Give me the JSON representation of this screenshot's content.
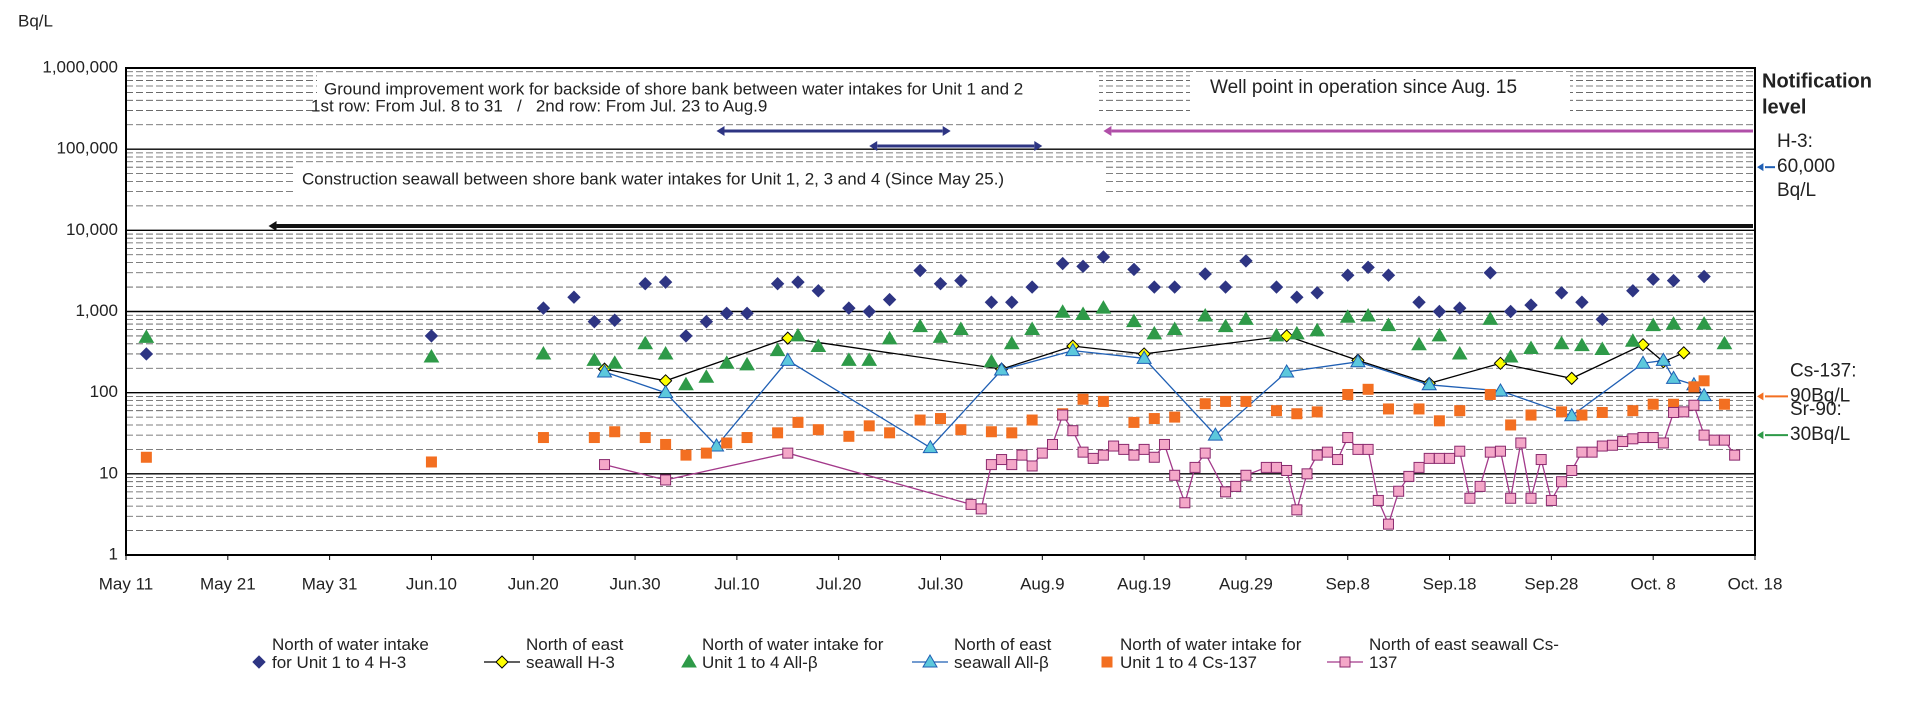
{
  "chart_data": {
    "type": "scatter",
    "y_label": "Bq/L",
    "log_y": true,
    "grid": true,
    "xlim": [
      "05-11",
      "10-18"
    ],
    "ylim": [
      1,
      1000000
    ],
    "yticks": [
      1,
      10,
      100,
      {
        "value": 1000,
        "label": "1,000"
      },
      {
        "value": 10000,
        "label": "10,000"
      },
      {
        "value": 100000,
        "label": "100,000"
      },
      {
        "value": 1000000,
        "label": "1,000,000"
      }
    ],
    "xticks": [
      {
        "value": "05-11",
        "label": "May 11"
      },
      {
        "value": "05-21",
        "label": "May 21"
      },
      {
        "value": "05-31",
        "label": "May 31"
      },
      {
        "value": "06-10",
        "label": "Jun.10"
      },
      {
        "value": "06-20",
        "label": "Jun.20"
      },
      {
        "value": "06-30",
        "label": "Jun.30"
      },
      {
        "value": "07-10",
        "label": "Jul.10"
      },
      {
        "value": "07-20",
        "label": "Jul.20"
      },
      {
        "value": "07-30",
        "label": "Jul.30"
      },
      {
        "value": "08-09",
        "label": "Aug.9"
      },
      {
        "value": "08-19",
        "label": "Aug.19"
      },
      {
        "value": "08-29",
        "label": "Aug.29"
      },
      {
        "value": "09-08",
        "label": "Sep.8"
      },
      {
        "value": "09-18",
        "label": "Sep.18"
      },
      {
        "value": "09-28",
        "label": "Sep.28"
      },
      {
        "value": "10-08",
        "label": "Oct. 8"
      },
      {
        "value": "10-18",
        "label": "Oct. 18"
      }
    ],
    "annotations": {
      "ground_improvement": "Ground improvement work for backside of shore bank between water intakes for Unit 1 and 2",
      "rows": "1st row: From Jul. 8 to 31   /   2nd row: From Jul. 23 to Aug.9",
      "well_point": "Well point in operation since Aug. 15",
      "seawall": "Construction seawall between shore bank water intakes for Unit 1, 2, 3 and 4 (Since May 25.)",
      "notification": "Notification",
      "notification_2": "level"
    },
    "periods": [
      {
        "start": "07-08",
        "end": "07-31",
        "color": "#2e3583"
      },
      {
        "start": "07-23",
        "end": "08-09",
        "color": "#2e3583"
      },
      {
        "start": "08-15",
        "end": null,
        "color": "#b04fa8"
      },
      {
        "start": "05-25",
        "end": null,
        "color": "#111111"
      }
    ],
    "notification_levels": [
      {
        "name": "H-3:",
        "value": 60000,
        "value_label": "60,000",
        "unit": "Bq/L",
        "color": "#1f5fb4"
      },
      {
        "name": "Cs-137:",
        "value": 90,
        "value_label": "90Bq/L",
        "color": "#f36f21"
      },
      {
        "name": "Sr-90:",
        "value": 30,
        "value_label": "30Bq/L",
        "color": "#2e9a48"
      }
    ],
    "series": [
      {
        "name": "North of water intake for Unit 1 to 4 H-3",
        "marker": "diamond",
        "color": "#2e3583",
        "edge": "#2e3583",
        "x": [
          "05-13",
          "06-10",
          "06-21",
          "06-24",
          "06-26",
          "06-28",
          "07-01",
          "07-03",
          "07-05",
          "07-07",
          "07-09",
          "07-11",
          "07-14",
          "07-16",
          "07-18",
          "07-21",
          "07-23",
          "07-25",
          "07-28",
          "07-30",
          "08-01",
          "08-04",
          "08-06",
          "08-08",
          "08-11",
          "08-13",
          "08-15",
          "08-18",
          "08-20",
          "08-22",
          "08-25",
          "08-27",
          "08-29",
          "09-01",
          "09-03",
          "09-05",
          "09-08",
          "09-10",
          "09-12",
          "09-15",
          "09-17",
          "09-19",
          "09-22",
          "09-24",
          "09-26",
          "09-29",
          "10-01",
          "10-03",
          "10-06",
          "10-08",
          "10-10",
          "10-13"
        ],
        "values": [
          300,
          500,
          1100,
          1500,
          750,
          780,
          2200,
          2300,
          500,
          750,
          950,
          950,
          2200,
          2300,
          1800,
          1100,
          1000,
          1400,
          3200,
          2200,
          2400,
          1300,
          1300,
          2000,
          3900,
          3600,
          4700,
          3300,
          2000,
          2000,
          2900,
          2000,
          4200,
          2000,
          1500,
          1700,
          2800,
          3500,
          2800,
          1300,
          1000,
          1100,
          3000,
          1000,
          1200,
          1700,
          1300,
          800,
          1800,
          2500,
          2400,
          2700
        ]
      },
      {
        "name": "North of east seawall H-3",
        "marker": "diamond",
        "color": "#ffff00",
        "edge": "#000000",
        "line": "#000000",
        "x": [
          "06-27",
          "07-03",
          "07-15",
          "08-05",
          "08-12",
          "08-19",
          "09-02",
          "09-09",
          "09-16",
          "09-23",
          "09-30",
          "10-07",
          "10-09",
          "10-11"
        ],
        "values": [
          195,
          140,
          470,
          195,
          375,
          300,
          500,
          250,
          130,
          230,
          150,
          390,
          240,
          310
        ]
      },
      {
        "name": "North of water intake for Unit 1 to 4 All-β",
        "marker": "triangle",
        "color": "#2e9a48",
        "edge": "#2e9a48",
        "x": [
          "05-13",
          "06-10",
          "06-21",
          "06-26",
          "06-28",
          "07-01",
          "07-03",
          "07-05",
          "07-07",
          "07-09",
          "07-11",
          "07-14",
          "07-16",
          "07-18",
          "07-21",
          "07-23",
          "07-25",
          "07-28",
          "07-30",
          "08-01",
          "08-04",
          "08-06",
          "08-08",
          "08-11",
          "08-13",
          "08-15",
          "08-18",
          "08-20",
          "08-22",
          "08-25",
          "08-27",
          "08-29",
          "09-01",
          "09-03",
          "09-05",
          "09-08",
          "09-10",
          "09-12",
          "09-15",
          "09-17",
          "09-19",
          "09-22",
          "09-24",
          "09-26",
          "09-29",
          "10-01",
          "10-03",
          "10-06",
          "10-08",
          "10-10",
          "10-13",
          "10-15"
        ],
        "values": [
          480,
          275,
          300,
          250,
          230,
          400,
          300,
          125,
          155,
          230,
          220,
          330,
          500,
          370,
          250,
          250,
          460,
          650,
          480,
          600,
          240,
          400,
          600,
          980,
          920,
          1100,
          750,
          530,
          600,
          880,
          650,
          800,
          500,
          530,
          580,
          850,
          880,
          670,
          390,
          500,
          300,
          800,
          275,
          350,
          400,
          380,
          340,
          430,
          670,
          700,
          700,
          400
        ]
      },
      {
        "name": "North of east seawall All-β",
        "marker": "triangle",
        "color": "#5cc8dc",
        "edge": "#1f5fb4",
        "line": "#1f5fb4",
        "x": [
          "06-27",
          "07-03",
          "07-08",
          "07-15",
          "07-29",
          "08-05",
          "08-12",
          "08-19",
          "08-26",
          "09-02",
          "09-09",
          "09-16",
          "09-23",
          "09-30",
          "10-07",
          "10-09",
          "10-10",
          "10-12",
          "10-13"
        ],
        "values": [
          180,
          100,
          22,
          250,
          21,
          190,
          330,
          265,
          30,
          180,
          240,
          125,
          105,
          52,
          230,
          250,
          150,
          125,
          92
        ]
      },
      {
        "name": "North of water intake for Unit 1 to 4 Cs-137",
        "marker": "square",
        "color": "#f36f21",
        "edge": "#f36f21",
        "x": [
          "05-13",
          "06-10",
          "06-21",
          "06-26",
          "06-28",
          "07-01",
          "07-03",
          "07-05",
          "07-07",
          "07-09",
          "07-11",
          "07-14",
          "07-16",
          "07-18",
          "07-21",
          "07-23",
          "07-25",
          "07-28",
          "07-30",
          "08-01",
          "08-04",
          "08-06",
          "08-08",
          "08-11",
          "08-13",
          "08-15",
          "08-18",
          "08-20",
          "08-22",
          "08-25",
          "08-27",
          "08-29",
          "09-01",
          "09-03",
          "09-05",
          "09-08",
          "09-10",
          "09-12",
          "09-15",
          "09-17",
          "09-19",
          "09-22",
          "09-24",
          "09-26",
          "09-29",
          "10-01",
          "10-03",
          "10-06",
          "10-08",
          "10-10",
          "10-12",
          "10-13",
          "10-15"
        ],
        "values": [
          16,
          14,
          28,
          28,
          33,
          28,
          23,
          17,
          18,
          24,
          28,
          32,
          43,
          35,
          29,
          39,
          32,
          46,
          48,
          35,
          33,
          32,
          46,
          55,
          83,
          78,
          43,
          48,
          50,
          73,
          78,
          78,
          60,
          55,
          58,
          95,
          110,
          63,
          63,
          45,
          60,
          95,
          40,
          53,
          58,
          53,
          57,
          60,
          72,
          72,
          118,
          140,
          72
        ]
      },
      {
        "name": "North of east seawall Cs-137",
        "marker": "square",
        "color": "#f4a7c8",
        "edge": "#8a2a6e",
        "line": "#a3398a",
        "x": [
          "06-27",
          "07-03",
          "07-15",
          "08-02",
          "08-03",
          "08-04",
          "08-05",
          "08-06",
          "08-07",
          "08-08",
          "08-09",
          "08-10",
          "08-11",
          "08-12",
          "08-13",
          "08-14",
          "08-15",
          "08-16",
          "08-17",
          "08-18",
          "08-19",
          "08-20",
          "08-21",
          "08-22",
          "08-23",
          "08-24",
          "08-25",
          "08-27",
          "08-28",
          "08-29",
          "08-31",
          "09-01",
          "09-02",
          "09-03",
          "09-04",
          "09-05",
          "09-06",
          "09-07",
          "09-08",
          "09-09",
          "09-10",
          "09-11",
          "09-12",
          "09-13",
          "09-14",
          "09-15",
          "09-16",
          "09-17",
          "09-18",
          "09-19",
          "09-20",
          "09-21",
          "09-22",
          "09-23",
          "09-24",
          "09-25",
          "09-26",
          "09-27",
          "09-28",
          "09-29",
          "09-30",
          "10-01",
          "10-02",
          "10-03",
          "10-04",
          "10-05",
          "10-06",
          "10-07",
          "10-08",
          "10-09",
          "10-10",
          "10-11",
          "10-12",
          "10-13",
          "10-14",
          "10-15",
          "10-16"
        ],
        "values": [
          13,
          8.4,
          18,
          4.2,
          3.7,
          13,
          15,
          13,
          17,
          12.5,
          18,
          23,
          53,
          34,
          18.5,
          15.5,
          17,
          22,
          20,
          17,
          20,
          16,
          23,
          9.6,
          4.4,
          12,
          18,
          6,
          7,
          9.6,
          12,
          12,
          11,
          3.6,
          10,
          17,
          18.5,
          15,
          28,
          20,
          20,
          4.7,
          2.4,
          6.1,
          9.3,
          12,
          15.5,
          15.5,
          15.5,
          19,
          5,
          7,
          18.5,
          19,
          5,
          24,
          5,
          15,
          4.7,
          8,
          11,
          18.5,
          18.5,
          22,
          22.5,
          25,
          27,
          28,
          28,
          24,
          57,
          58,
          70,
          30,
          26,
          26,
          17
        ]
      }
    ]
  }
}
